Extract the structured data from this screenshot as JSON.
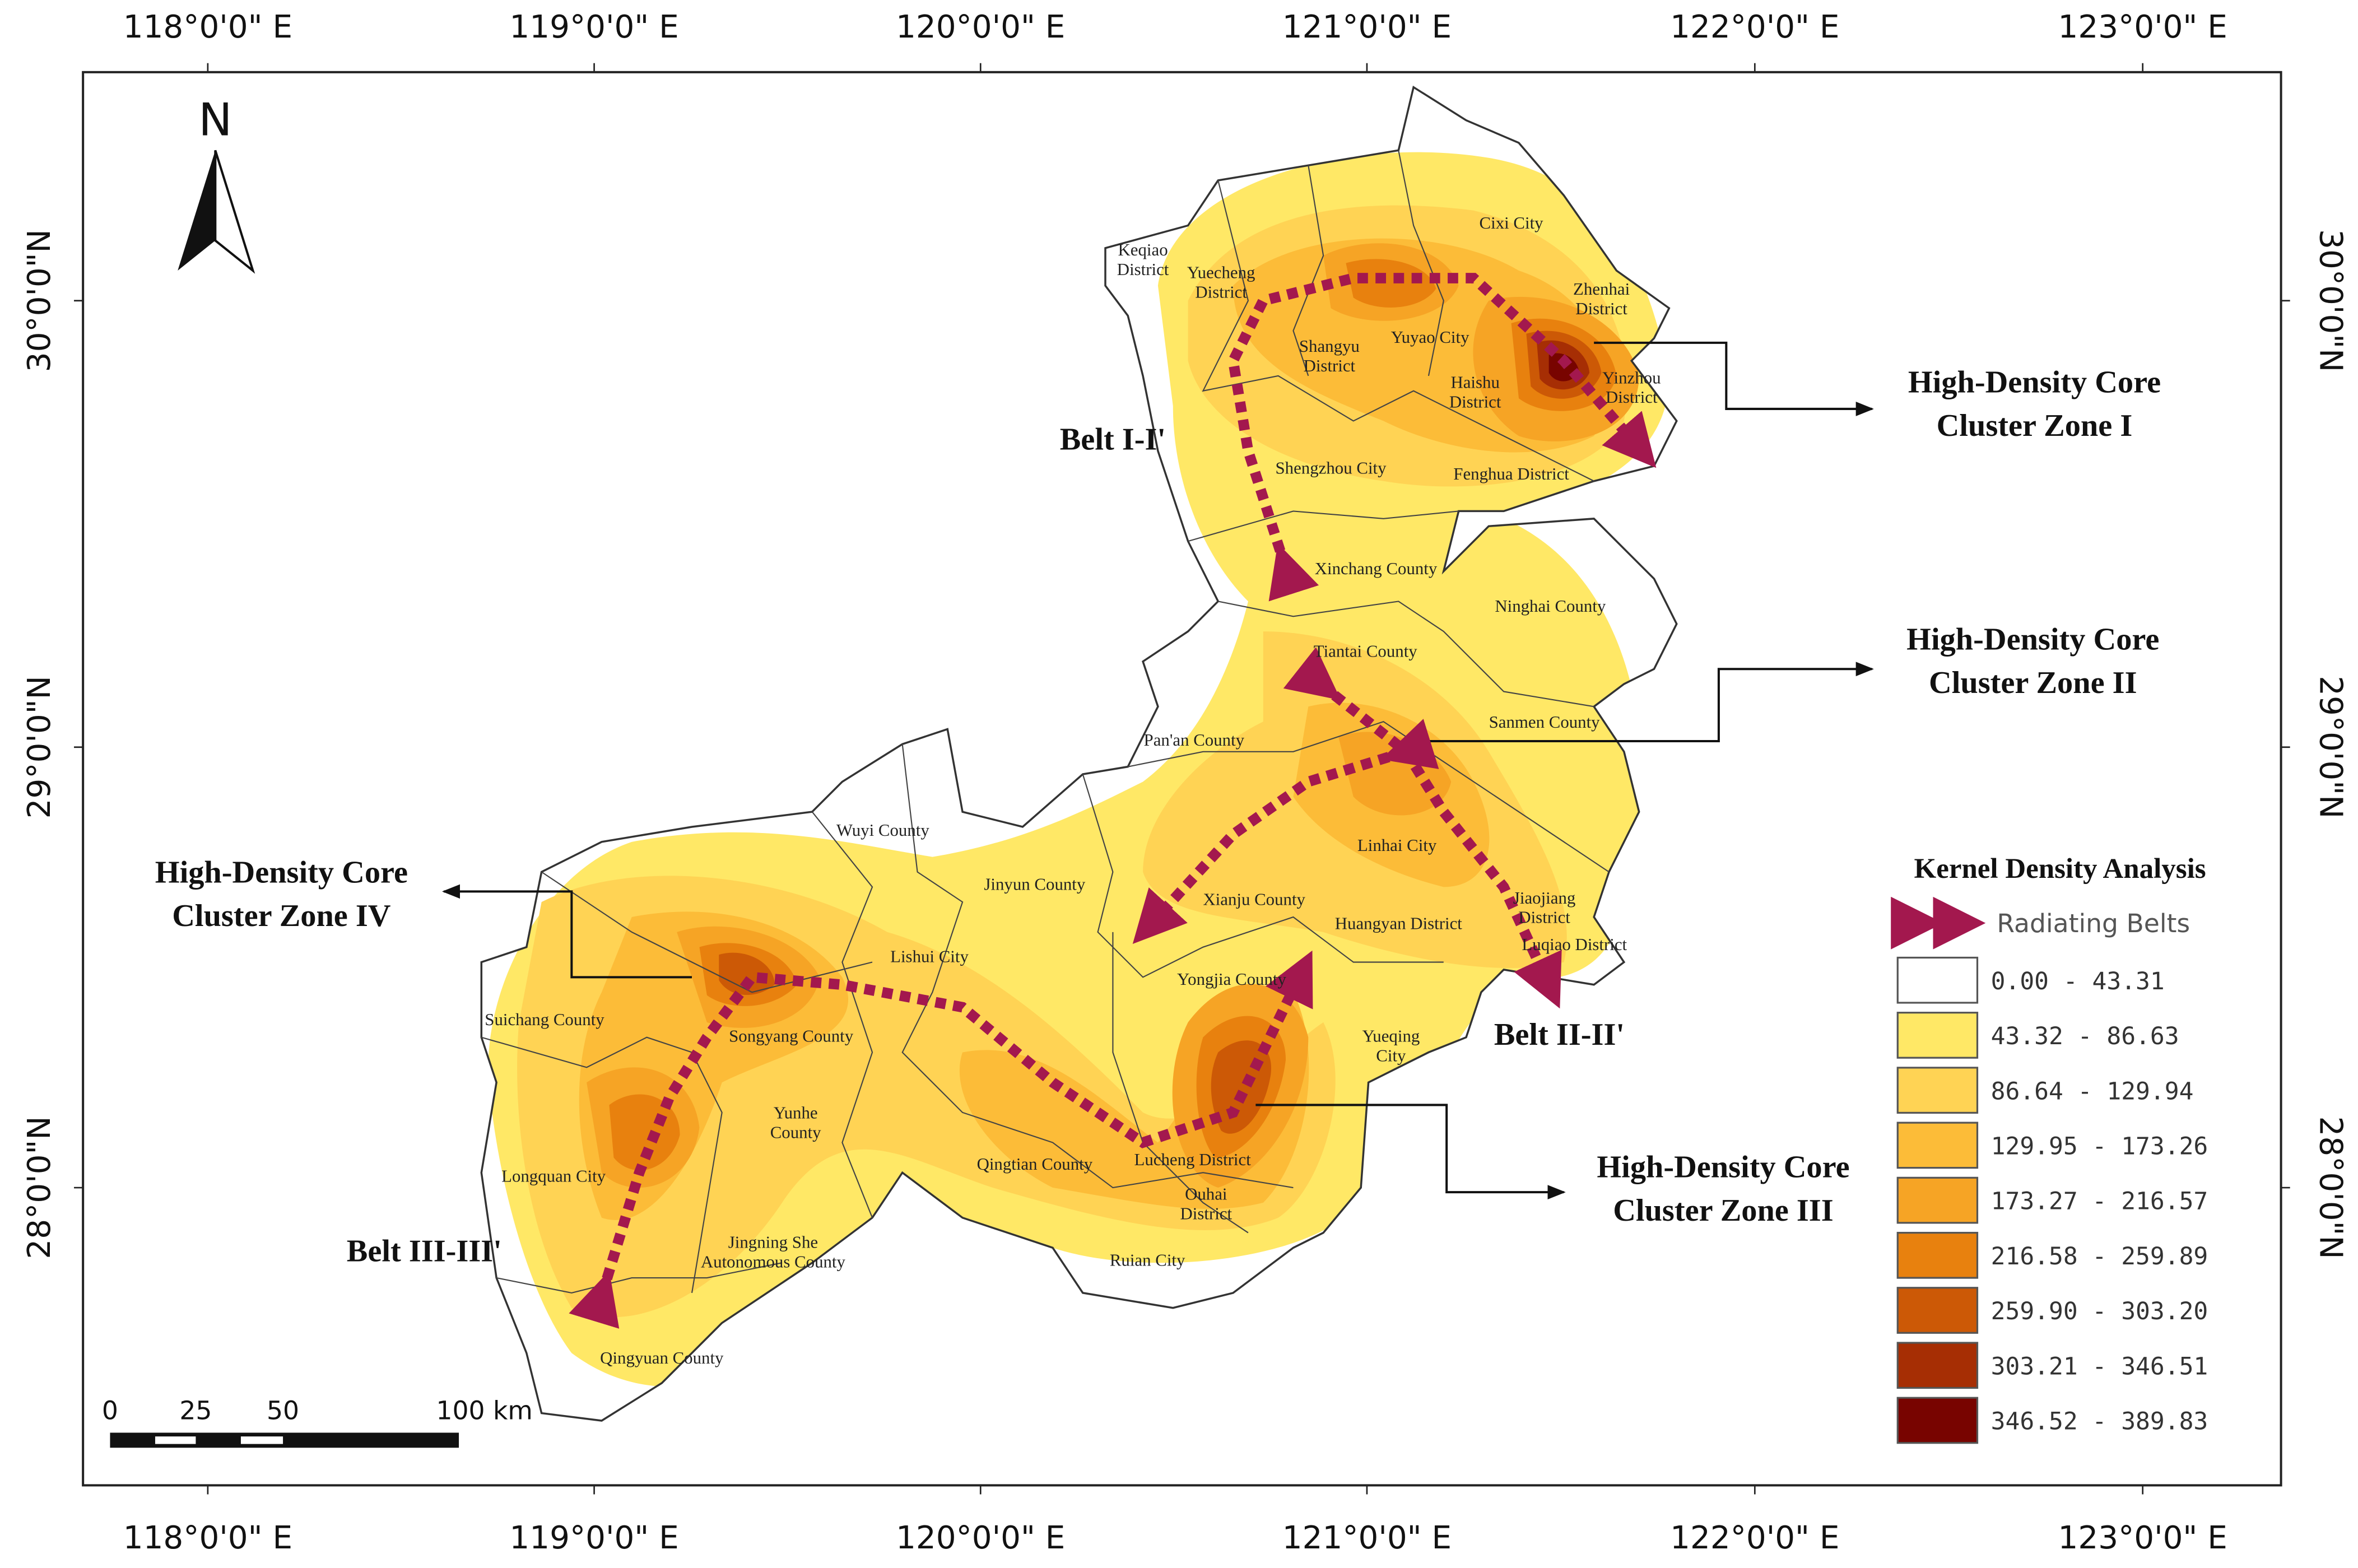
{
  "graticule": {
    "longitudes": [
      "118°0'0\" E",
      "119°0'0\" E",
      "120°0'0\" E",
      "121°0'0\" E",
      "122°0'0\" E",
      "123°0'0\" E"
    ],
    "latitudes": [
      "30°0'0\"N",
      "29°0'0\"N",
      "28°0'0\"N"
    ]
  },
  "north_arrow": "N",
  "scale_bar": [
    "0",
    "25",
    "50",
    "100 km"
  ],
  "counties": [
    {
      "lines": [
        "Keqiao",
        "District"
      ]
    },
    {
      "lines": [
        "Yuecheng",
        "District"
      ]
    },
    {
      "lines": [
        "Cixi City"
      ]
    },
    {
      "lines": [
        "Zhenhai",
        "District"
      ]
    },
    {
      "lines": [
        "Shangyu",
        "District"
      ]
    },
    {
      "lines": [
        "Yuyao City"
      ]
    },
    {
      "lines": [
        "Haishu",
        "District"
      ]
    },
    {
      "lines": [
        "Yinzhou",
        "District"
      ]
    },
    {
      "lines": [
        "Shengzhou City"
      ]
    },
    {
      "lines": [
        "Fenghua District"
      ]
    },
    {
      "lines": [
        "Xinchang County"
      ]
    },
    {
      "lines": [
        "Ninghai County"
      ]
    },
    {
      "lines": [
        "Tiantai County"
      ]
    },
    {
      "lines": [
        "Pan'an County"
      ]
    },
    {
      "lines": [
        "Sanmen County"
      ]
    },
    {
      "lines": [
        "Wuyi County"
      ]
    },
    {
      "lines": [
        "Linhai City"
      ]
    },
    {
      "lines": [
        "Jinyun County"
      ]
    },
    {
      "lines": [
        "Xianju County"
      ]
    },
    {
      "lines": [
        "Jiaojiang",
        "District"
      ]
    },
    {
      "lines": [
        "Huangyan District"
      ]
    },
    {
      "lines": [
        "Luqiao District"
      ]
    },
    {
      "lines": [
        "Lishui City"
      ]
    },
    {
      "lines": [
        "Yongjia County"
      ]
    },
    {
      "lines": [
        "Suichang County"
      ]
    },
    {
      "lines": [
        "Songyang County"
      ]
    },
    {
      "lines": [
        "Yueqing",
        "City"
      ]
    },
    {
      "lines": [
        "Yunhe",
        "County"
      ]
    },
    {
      "lines": [
        "Qingtian County"
      ]
    },
    {
      "lines": [
        "Longquan City"
      ]
    },
    {
      "lines": [
        "Lucheng District"
      ]
    },
    {
      "lines": [
        "Ouhai",
        "District"
      ]
    },
    {
      "lines": [
        "Ruian City"
      ]
    },
    {
      "lines": [
        "Jingning She",
        "Autonomous County"
      ]
    },
    {
      "lines": [
        "Qingyuan County"
      ]
    }
  ],
  "annotations": [
    {
      "lines": [
        "High-Density Core",
        "Cluster Zone I"
      ]
    },
    {
      "lines": [
        "High-Density Core",
        "Cluster Zone II"
      ]
    },
    {
      "lines": [
        "High-Density Core",
        "Cluster Zone III"
      ]
    },
    {
      "lines": [
        "High-Density Core",
        "Cluster Zone IV"
      ]
    }
  ],
  "belts": [
    "Belt I-I'",
    "Belt II-II'",
    "Belt III-III'"
  ],
  "legend": {
    "title": "Kernel Density Analysis",
    "belt_label": "Radiating Belts",
    "belt_color": "#a3184e",
    "classes": [
      {
        "label": "0.00 - 43.31",
        "color": "#ffffff"
      },
      {
        "label": "43.32 - 86.63",
        "color": "#ffe866"
      },
      {
        "label": "86.64 - 129.94",
        "color": "#ffd354"
      },
      {
        "label": "129.95 - 173.26",
        "color": "#fcbc38"
      },
      {
        "label": "173.27 - 216.57",
        "color": "#f6a425"
      },
      {
        "label": "216.58 - 259.89",
        "color": "#e8810e"
      },
      {
        "label": "259.90 - 303.20",
        "color": "#cc5906"
      },
      {
        "label": "303.21 - 346.51",
        "color": "#a62e04"
      },
      {
        "label": "346.52 - 389.83",
        "color": "#780400"
      }
    ]
  }
}
